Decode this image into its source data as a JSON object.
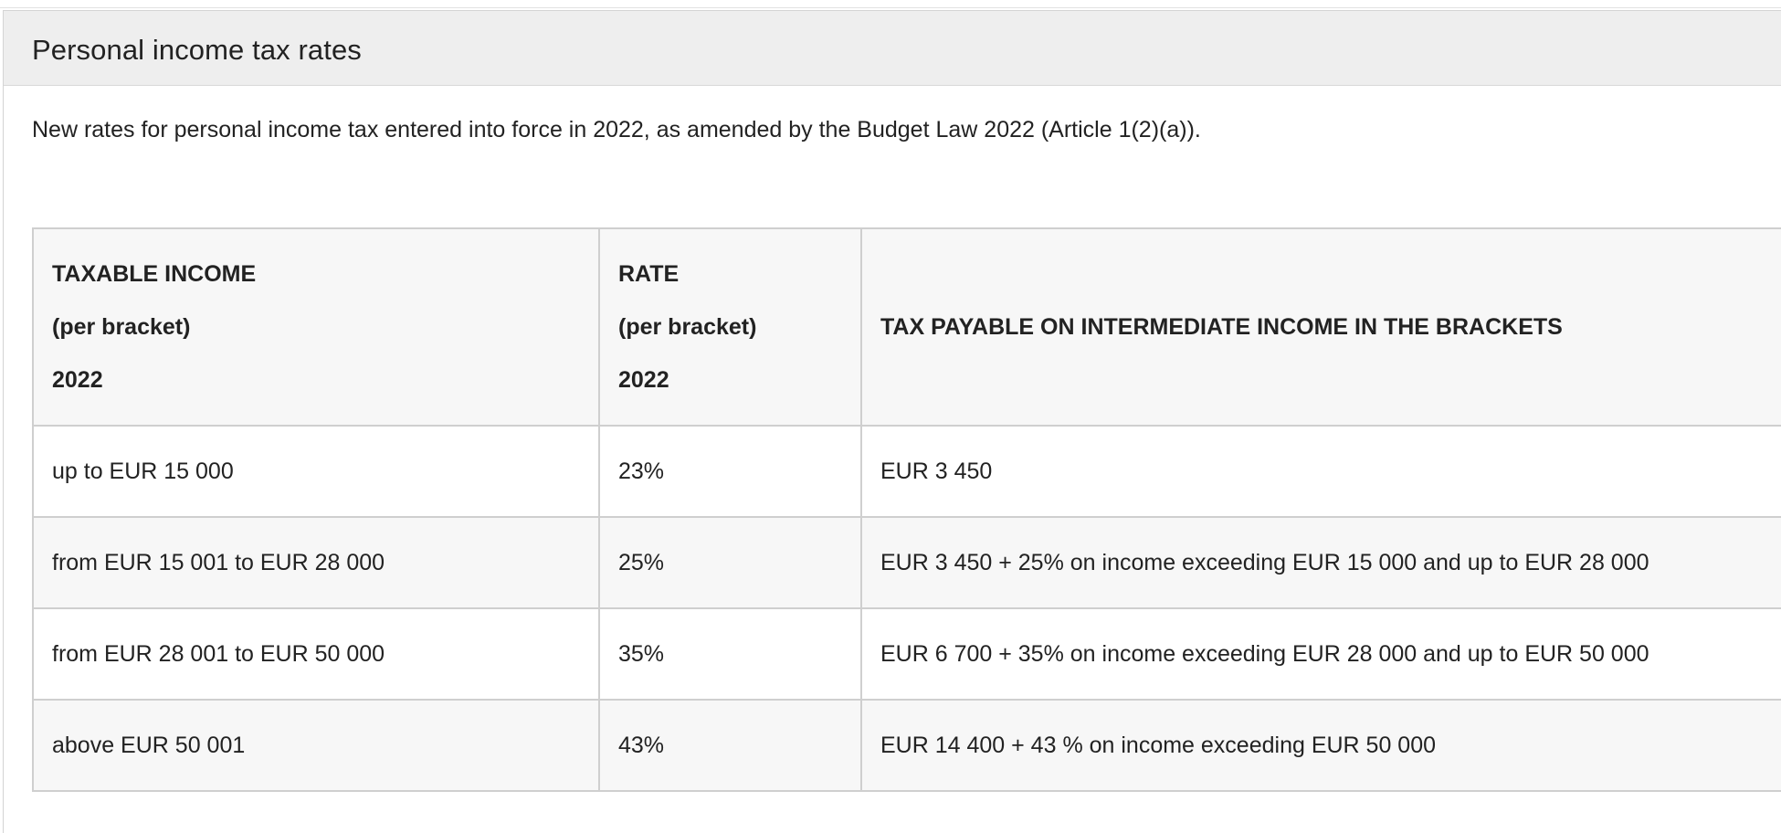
{
  "panel": {
    "title": "Personal income tax rates",
    "intro": "New rates for personal income tax entered into force in 2022, as amended by the Budget Law 2022 (Article 1(2)(a))."
  },
  "table": {
    "headers": {
      "income": [
        "TAXABLE INCOME",
        "(per bracket)",
        "2022"
      ],
      "rate": [
        "RATE",
        "(per bracket)",
        "2022"
      ],
      "payable": "TAX PAYABLE ON INTERMEDIATE INCOME IN THE BRACKETS"
    },
    "rows": [
      {
        "income": "up to EUR 15 000",
        "rate": "23%",
        "payable": "EUR 3 450"
      },
      {
        "income": "from EUR 15 001 to EUR 28 000",
        "rate": "25%",
        "payable": "EUR 3 450 + 25% on income exceeding EUR 15 000 and up to EUR 28 000"
      },
      {
        "income": "from EUR 28 001 to EUR 50 000",
        "rate": "35%",
        "payable": "EUR 6 700 + 35% on income exceeding EUR 28 000 and up to EUR 50 000"
      },
      {
        "income": "above EUR 50 001",
        "rate": "43%",
        "payable": "EUR 14 400 + 43 % on income exceeding EUR 50 000"
      }
    ]
  }
}
